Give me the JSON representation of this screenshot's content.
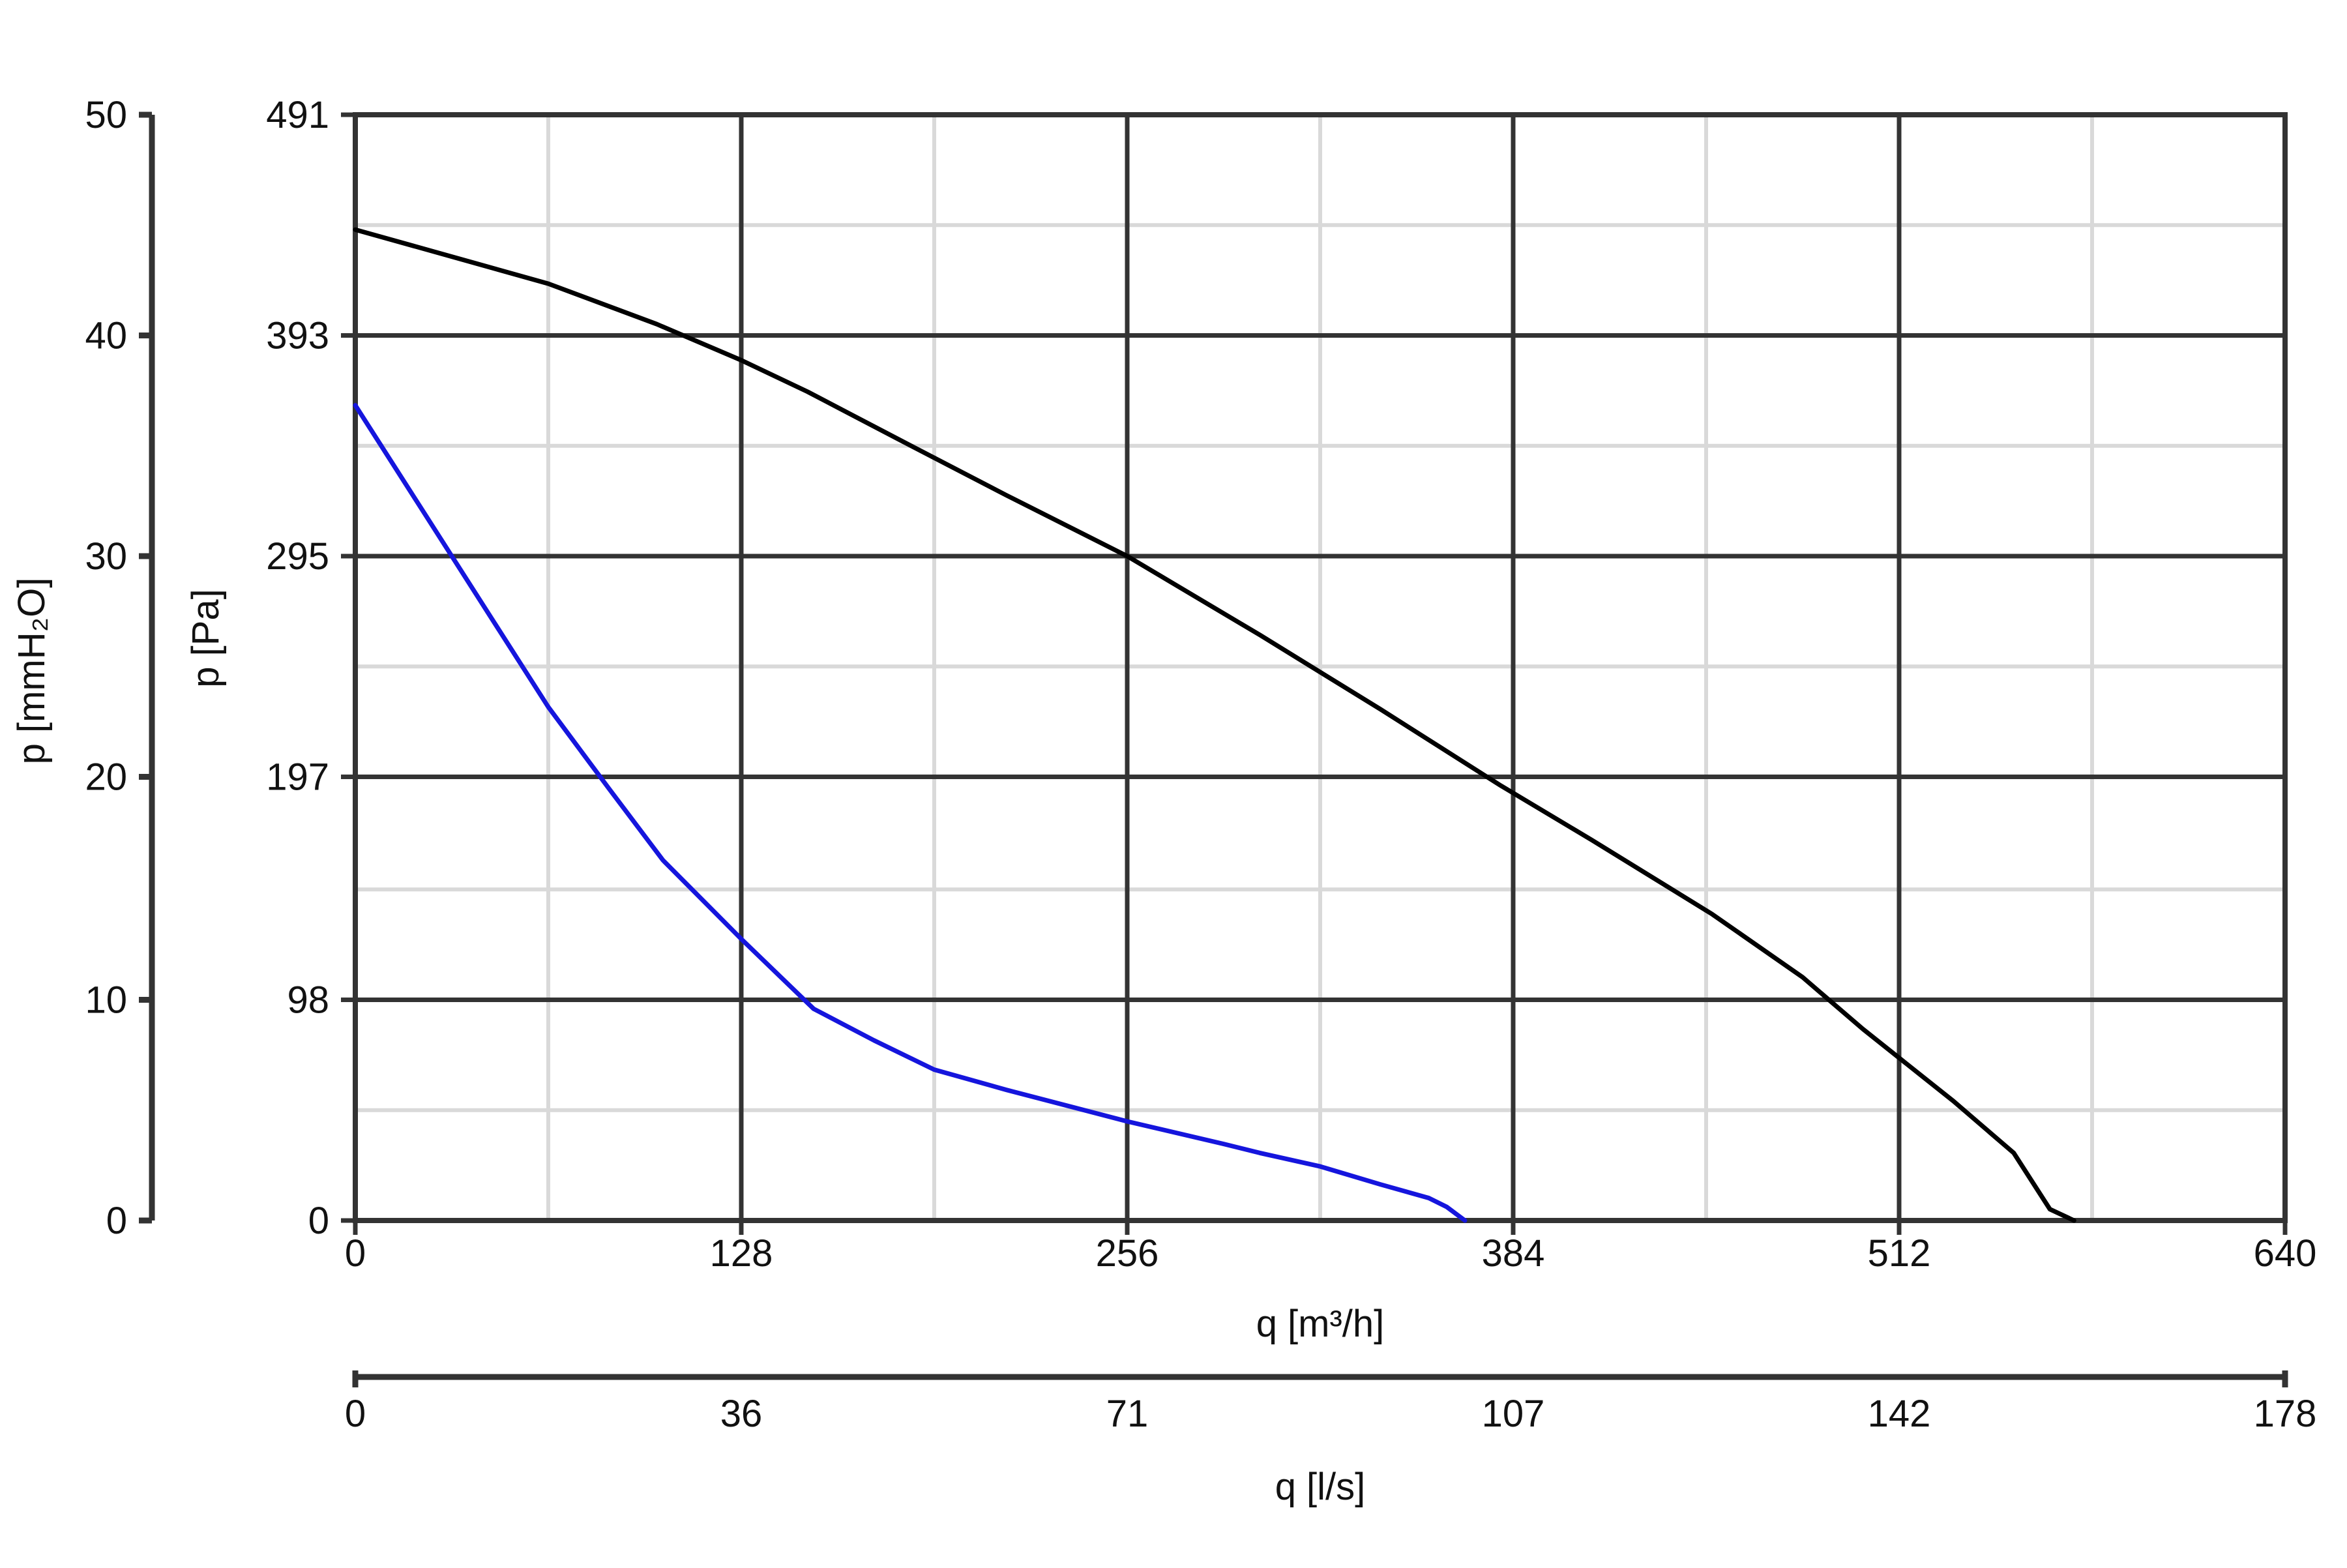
{
  "chart_data": {
    "type": "line",
    "title": "",
    "x_primary": {
      "label": "q [m³/h]",
      "range": [
        0,
        640
      ],
      "major_ticks": [
        0,
        128,
        256,
        384,
        512,
        640
      ],
      "tick_labels": [
        "0",
        "128",
        "256",
        "384",
        "512",
        "640"
      ],
      "minor_ticks": [
        64,
        192,
        320,
        448,
        576
      ]
    },
    "x_secondary": {
      "label": "q [l/s]",
      "tick_labels": [
        "0",
        "36",
        "71",
        "107",
        "142",
        "178"
      ]
    },
    "y_primary": {
      "label": "p [Pa]",
      "range": [
        0,
        491
      ],
      "major_ticks": [
        0,
        98,
        197,
        295,
        393,
        491
      ],
      "tick_labels": [
        "0",
        "98",
        "197",
        "295",
        "393",
        "491"
      ],
      "minor_ticks": [
        49,
        147,
        246,
        344,
        442
      ]
    },
    "y_secondary": {
      "label": "p [mmH₂O]",
      "tick_labels": [
        "0",
        "10",
        "20",
        "30",
        "40",
        "50"
      ]
    },
    "grid": true,
    "series": [
      {
        "color": "#000000",
        "points": [
          [
            0,
            440
          ],
          [
            40,
            425
          ],
          [
            64,
            416
          ],
          [
            100,
            398
          ],
          [
            128,
            382
          ],
          [
            150,
            368
          ],
          [
            180,
            347
          ],
          [
            216,
            322
          ],
          [
            256,
            295
          ],
          [
            300,
            260
          ],
          [
            340,
            227
          ],
          [
            380,
            193
          ],
          [
            410,
            169
          ],
          [
            450,
            136
          ],
          [
            480,
            108
          ],
          [
            500,
            85
          ],
          [
            530,
            53
          ],
          [
            550,
            30
          ],
          [
            562,
            5
          ],
          [
            570,
            0
          ]
        ]
      },
      {
        "color": "#1515dd",
        "points": [
          [
            0,
            362
          ],
          [
            32,
            295
          ],
          [
            64,
            228
          ],
          [
            84,
            192
          ],
          [
            102,
            160
          ],
          [
            128,
            125
          ],
          [
            152,
            94
          ],
          [
            172,
            80
          ],
          [
            192,
            67
          ],
          [
            216,
            58
          ],
          [
            256,
            44
          ],
          [
            288,
            34
          ],
          [
            300,
            30
          ],
          [
            320,
            24
          ],
          [
            340,
            16
          ],
          [
            356,
            10
          ],
          [
            362,
            6
          ],
          [
            368,
            0
          ]
        ]
      }
    ]
  }
}
